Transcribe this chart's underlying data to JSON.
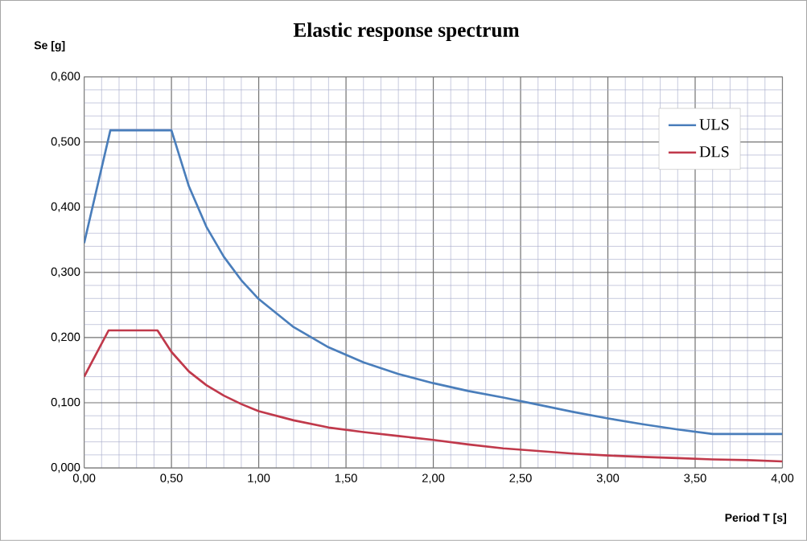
{
  "chart_data": {
    "type": "line",
    "title": "Elastic response spectrum",
    "xlabel": "Period   T [s]",
    "ylabel": "Se [g]",
    "xlim": [
      0,
      4
    ],
    "ylim": [
      0,
      0.6
    ],
    "xticks": [
      {
        "value": 0,
        "label": "0,00"
      },
      {
        "value": 0.5,
        "label": "0,50"
      },
      {
        "value": 1,
        "label": "1,00"
      },
      {
        "value": 1.5,
        "label": "1,50"
      },
      {
        "value": 2,
        "label": "2,00"
      },
      {
        "value": 2.5,
        "label": "2,50"
      },
      {
        "value": 3,
        "label": "3,00"
      },
      {
        "value": 3.5,
        "label": "3,50"
      },
      {
        "value": 4,
        "label": "4,00"
      }
    ],
    "yticks": [
      {
        "value": 0,
        "label": "0,000"
      },
      {
        "value": 0.1,
        "label": "0,100"
      },
      {
        "value": 0.2,
        "label": "0,200"
      },
      {
        "value": 0.3,
        "label": "0,300"
      },
      {
        "value": 0.4,
        "label": "0,400"
      },
      {
        "value": 0.5,
        "label": "0,500"
      },
      {
        "value": 0.6,
        "label": "0,600"
      }
    ],
    "grid": true,
    "legend": "top right",
    "marker": "none",
    "line_style": "solid",
    "series": [
      {
        "name": "ULS",
        "color": "#4a7ebb",
        "x": [
          0,
          0.15,
          0.5,
          0.6,
          0.7,
          0.8,
          0.9,
          1.0,
          1.2,
          1.4,
          1.6,
          1.8,
          2.0,
          2.2,
          2.4,
          2.6,
          2.8,
          3.0,
          3.2,
          3.4,
          3.6,
          4.0
        ],
        "values": [
          0.345,
          0.518,
          0.518,
          0.432,
          0.37,
          0.324,
          0.288,
          0.259,
          0.216,
          0.185,
          0.162,
          0.144,
          0.13,
          0.118,
          0.108,
          0.097,
          0.086,
          0.076,
          0.067,
          0.059,
          0.052,
          0.052
        ]
      },
      {
        "name": "DLS",
        "color": "#c0394b",
        "x": [
          0,
          0.14,
          0.42,
          0.5,
          0.6,
          0.7,
          0.8,
          0.9,
          1.0,
          1.2,
          1.4,
          1.6,
          1.8,
          2.0,
          2.2,
          2.4,
          2.6,
          2.8,
          3.0,
          3.2,
          3.4,
          3.6,
          3.8,
          4.0
        ],
        "values": [
          0.14,
          0.211,
          0.211,
          0.178,
          0.148,
          0.127,
          0.111,
          0.098,
          0.087,
          0.073,
          0.062,
          0.055,
          0.049,
          0.043,
          0.036,
          0.03,
          0.026,
          0.022,
          0.019,
          0.017,
          0.015,
          0.013,
          0.012,
          0.01
        ]
      }
    ]
  }
}
